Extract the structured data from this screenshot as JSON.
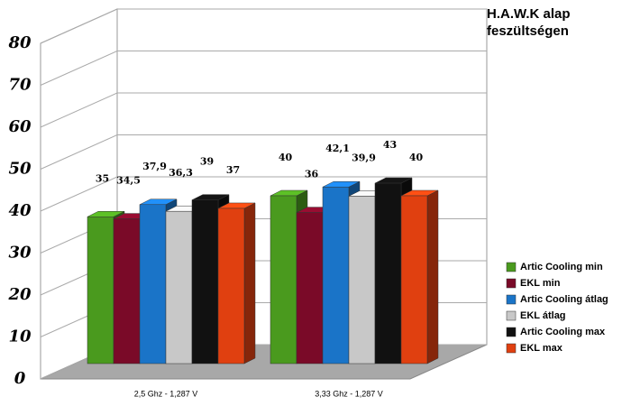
{
  "chart_data": {
    "type": "bar3d",
    "title": "H.A.W.K alap feszültségen",
    "categories": [
      "2,5 Ghz - 1,287 V",
      "3,33 Ghz - 1,287 V"
    ],
    "series": [
      {
        "name": "Artic Cooling min",
        "color": "#4a9a1e",
        "values": [
          35,
          40
        ]
      },
      {
        "name": "EKL min",
        "color": "#7a0a28",
        "values": [
          34.5,
          36
        ],
        "value_labels": [
          "34,5",
          "36"
        ]
      },
      {
        "name": "Artic Cooling átlag",
        "color": "#1a74c8",
        "values": [
          37.9,
          42.1
        ],
        "value_labels": [
          "37,9",
          "42,1"
        ]
      },
      {
        "name": "EKL átlag",
        "color": "#c8c8c8",
        "values": [
          36.3,
          39.9
        ],
        "value_labels": [
          "36,3",
          "39,9"
        ]
      },
      {
        "name": "Artic Cooling max",
        "color": "#111111",
        "values": [
          39,
          43
        ]
      },
      {
        "name": "EKL max",
        "color": "#e04010",
        "values": [
          37,
          40
        ]
      }
    ],
    "ylim": [
      0,
      80
    ],
    "yticks": [
      0,
      10,
      20,
      30,
      40,
      50,
      60,
      70,
      80
    ],
    "grid": true,
    "legend": "right"
  }
}
